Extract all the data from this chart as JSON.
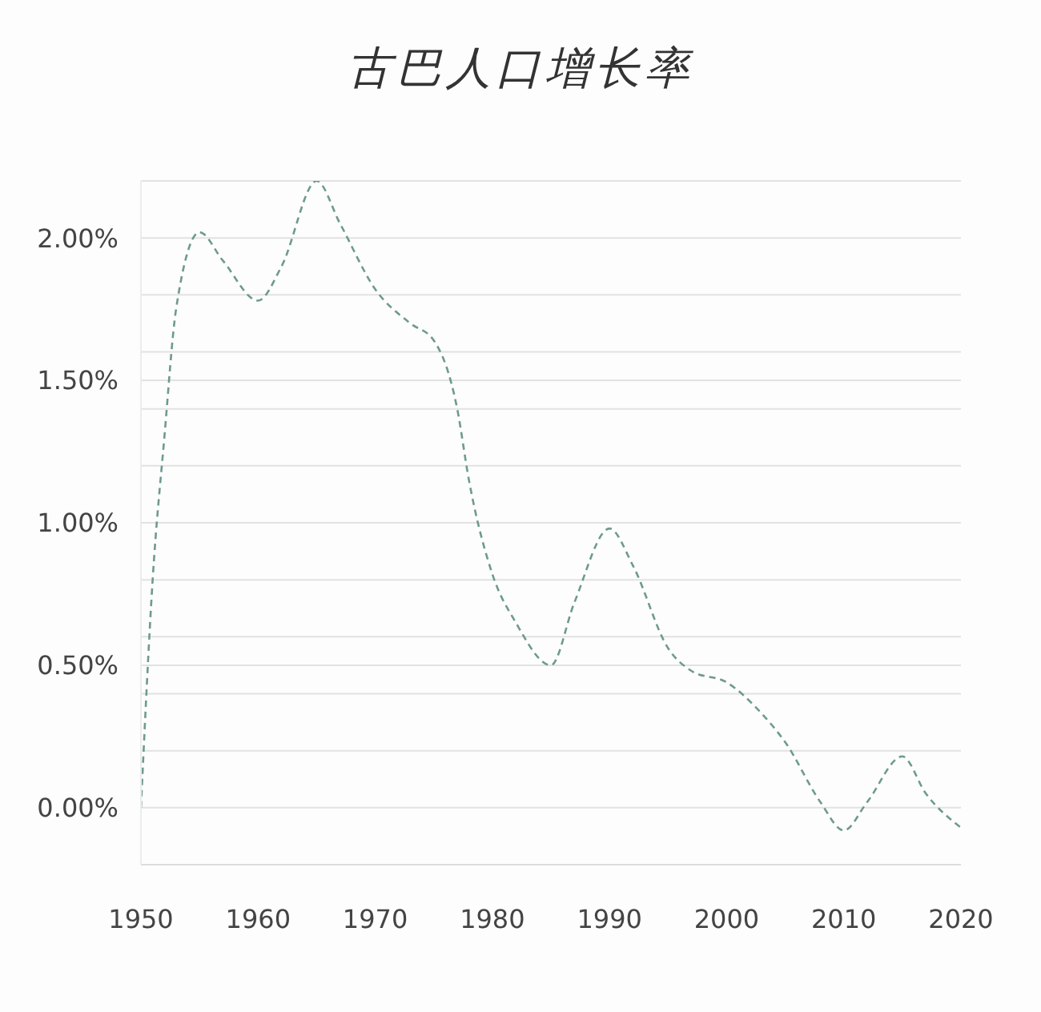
{
  "chart_data": {
    "type": "line",
    "title": "古巴人口增长率",
    "x": [
      1950,
      1951,
      1952,
      1953,
      1955,
      1957,
      1960,
      1962,
      1965,
      1967,
      1970,
      1973,
      1975,
      1977,
      1978,
      1980,
      1982,
      1985,
      1987,
      1990,
      1992,
      1995,
      1997,
      2000,
      2003,
      2005,
      2008,
      2010,
      2012,
      2015,
      2017,
      2020
    ],
    "series": [
      {
        "color": "#6e9a90",
        "values": [
          0.0,
          0.8,
          1.3,
          1.75,
          2.02,
          1.92,
          1.78,
          1.9,
          2.2,
          2.05,
          1.82,
          1.7,
          1.64,
          1.4,
          1.15,
          0.82,
          0.65,
          0.5,
          0.72,
          0.98,
          0.85,
          0.56,
          0.48,
          0.44,
          0.33,
          0.23,
          0.02,
          -0.08,
          0.02,
          0.18,
          0.05,
          -0.07
        ]
      }
    ],
    "xlim": [
      1950,
      2020
    ],
    "xticks": [
      1950,
      1960,
      1970,
      1980,
      1990,
      2000,
      2010,
      2020
    ],
    "ylim": [
      -0.2,
      2.2
    ],
    "yticks": [
      {
        "value": 0,
        "label": "0.00%"
      },
      {
        "value": 0.2,
        "label": null
      },
      {
        "value": 0.4,
        "label": null
      },
      {
        "value": 0.5,
        "label": "0.50%"
      },
      {
        "value": 0.6,
        "label": null
      },
      {
        "value": 0.8,
        "label": null
      },
      {
        "value": 1.0,
        "label": "1.00%"
      },
      {
        "value": 1.2,
        "label": null
      },
      {
        "value": 1.4,
        "label": null
      },
      {
        "value": 1.5,
        "label": "1.50%"
      },
      {
        "value": 1.6,
        "label": null
      },
      {
        "value": 1.8,
        "label": null
      },
      {
        "value": 2.0,
        "label": "2.00%"
      },
      {
        "value": 2.2,
        "label": null
      }
    ],
    "grid": "y",
    "marker": "none",
    "line_style": "dashed"
  }
}
